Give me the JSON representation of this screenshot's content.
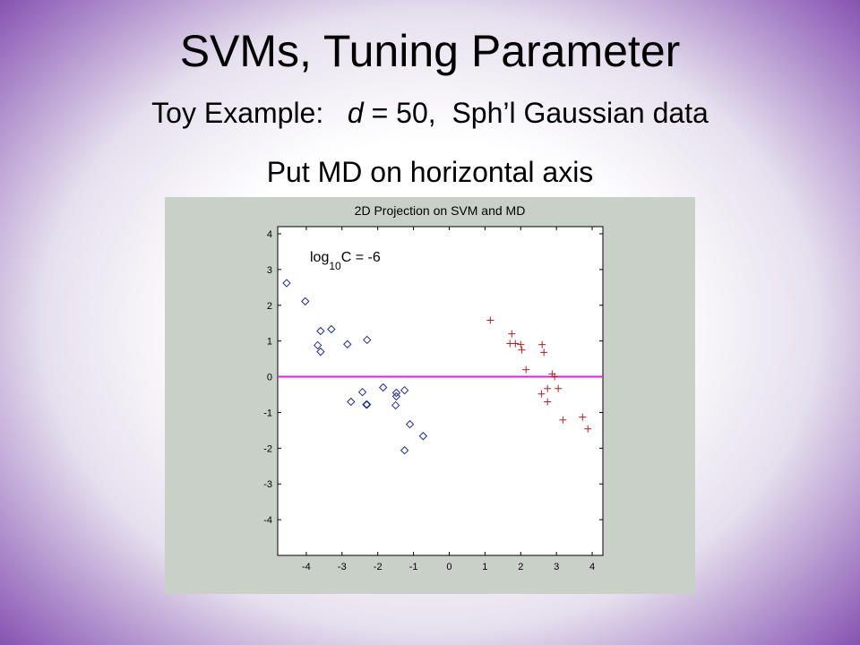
{
  "slide": {
    "title": "SVMs, Tuning Parameter",
    "subtitle_parts": [
      "Toy Example:",
      "d",
      "= 50,  Sph’l Gaussian data"
    ],
    "note": "Put MD on horizontal axis"
  },
  "chart_data": {
    "type": "scatter",
    "title": "2D Projection on SVM and MD",
    "annotation_parts": [
      "log",
      "10",
      "C = -6"
    ],
    "xlim": [
      -4.8,
      4.3
    ],
    "ylim": [
      -5,
      4.2
    ],
    "xticks": [
      -4,
      -3,
      -2,
      -1,
      0,
      1,
      2,
      3,
      4
    ],
    "yticks": [
      -4,
      -3,
      -2,
      -1,
      0,
      1,
      2,
      3,
      4
    ],
    "hline": 0,
    "hline_color": "#e020e0",
    "series": [
      {
        "marker": "diamond",
        "color": "#1f2f8f",
        "x": [
          -4.55,
          -4.03,
          -3.6,
          -3.3,
          -3.68,
          -3.6,
          -2.85,
          -2.3,
          -2.75,
          -2.43,
          -2.3,
          -2.32,
          -1.85,
          -1.48,
          -1.5,
          -1.48,
          -1.25,
          -1.1,
          -1.25,
          -0.73
        ],
        "values": [
          2.62,
          2.11,
          1.28,
          1.33,
          0.88,
          0.7,
          0.91,
          1.03,
          -0.7,
          -0.43,
          -0.78,
          -0.78,
          -0.3,
          -0.45,
          -0.8,
          -0.55,
          -0.38,
          -1.33,
          -2.06,
          -1.66
        ]
      },
      {
        "marker": "plus",
        "color": "#b02020",
        "x": [
          1.15,
          1.75,
          1.7,
          1.85,
          2.0,
          2.03,
          2.6,
          2.65,
          2.15,
          2.88,
          2.95,
          2.58,
          2.75,
          3.05,
          2.75,
          3.18,
          3.73,
          3.88
        ],
        "values": [
          1.58,
          1.2,
          0.93,
          0.93,
          0.9,
          0.75,
          0.9,
          0.68,
          0.2,
          0.08,
          0,
          -0.48,
          -0.33,
          -0.33,
          -0.7,
          -1.21,
          -1.13,
          -1.46
        ]
      }
    ]
  }
}
